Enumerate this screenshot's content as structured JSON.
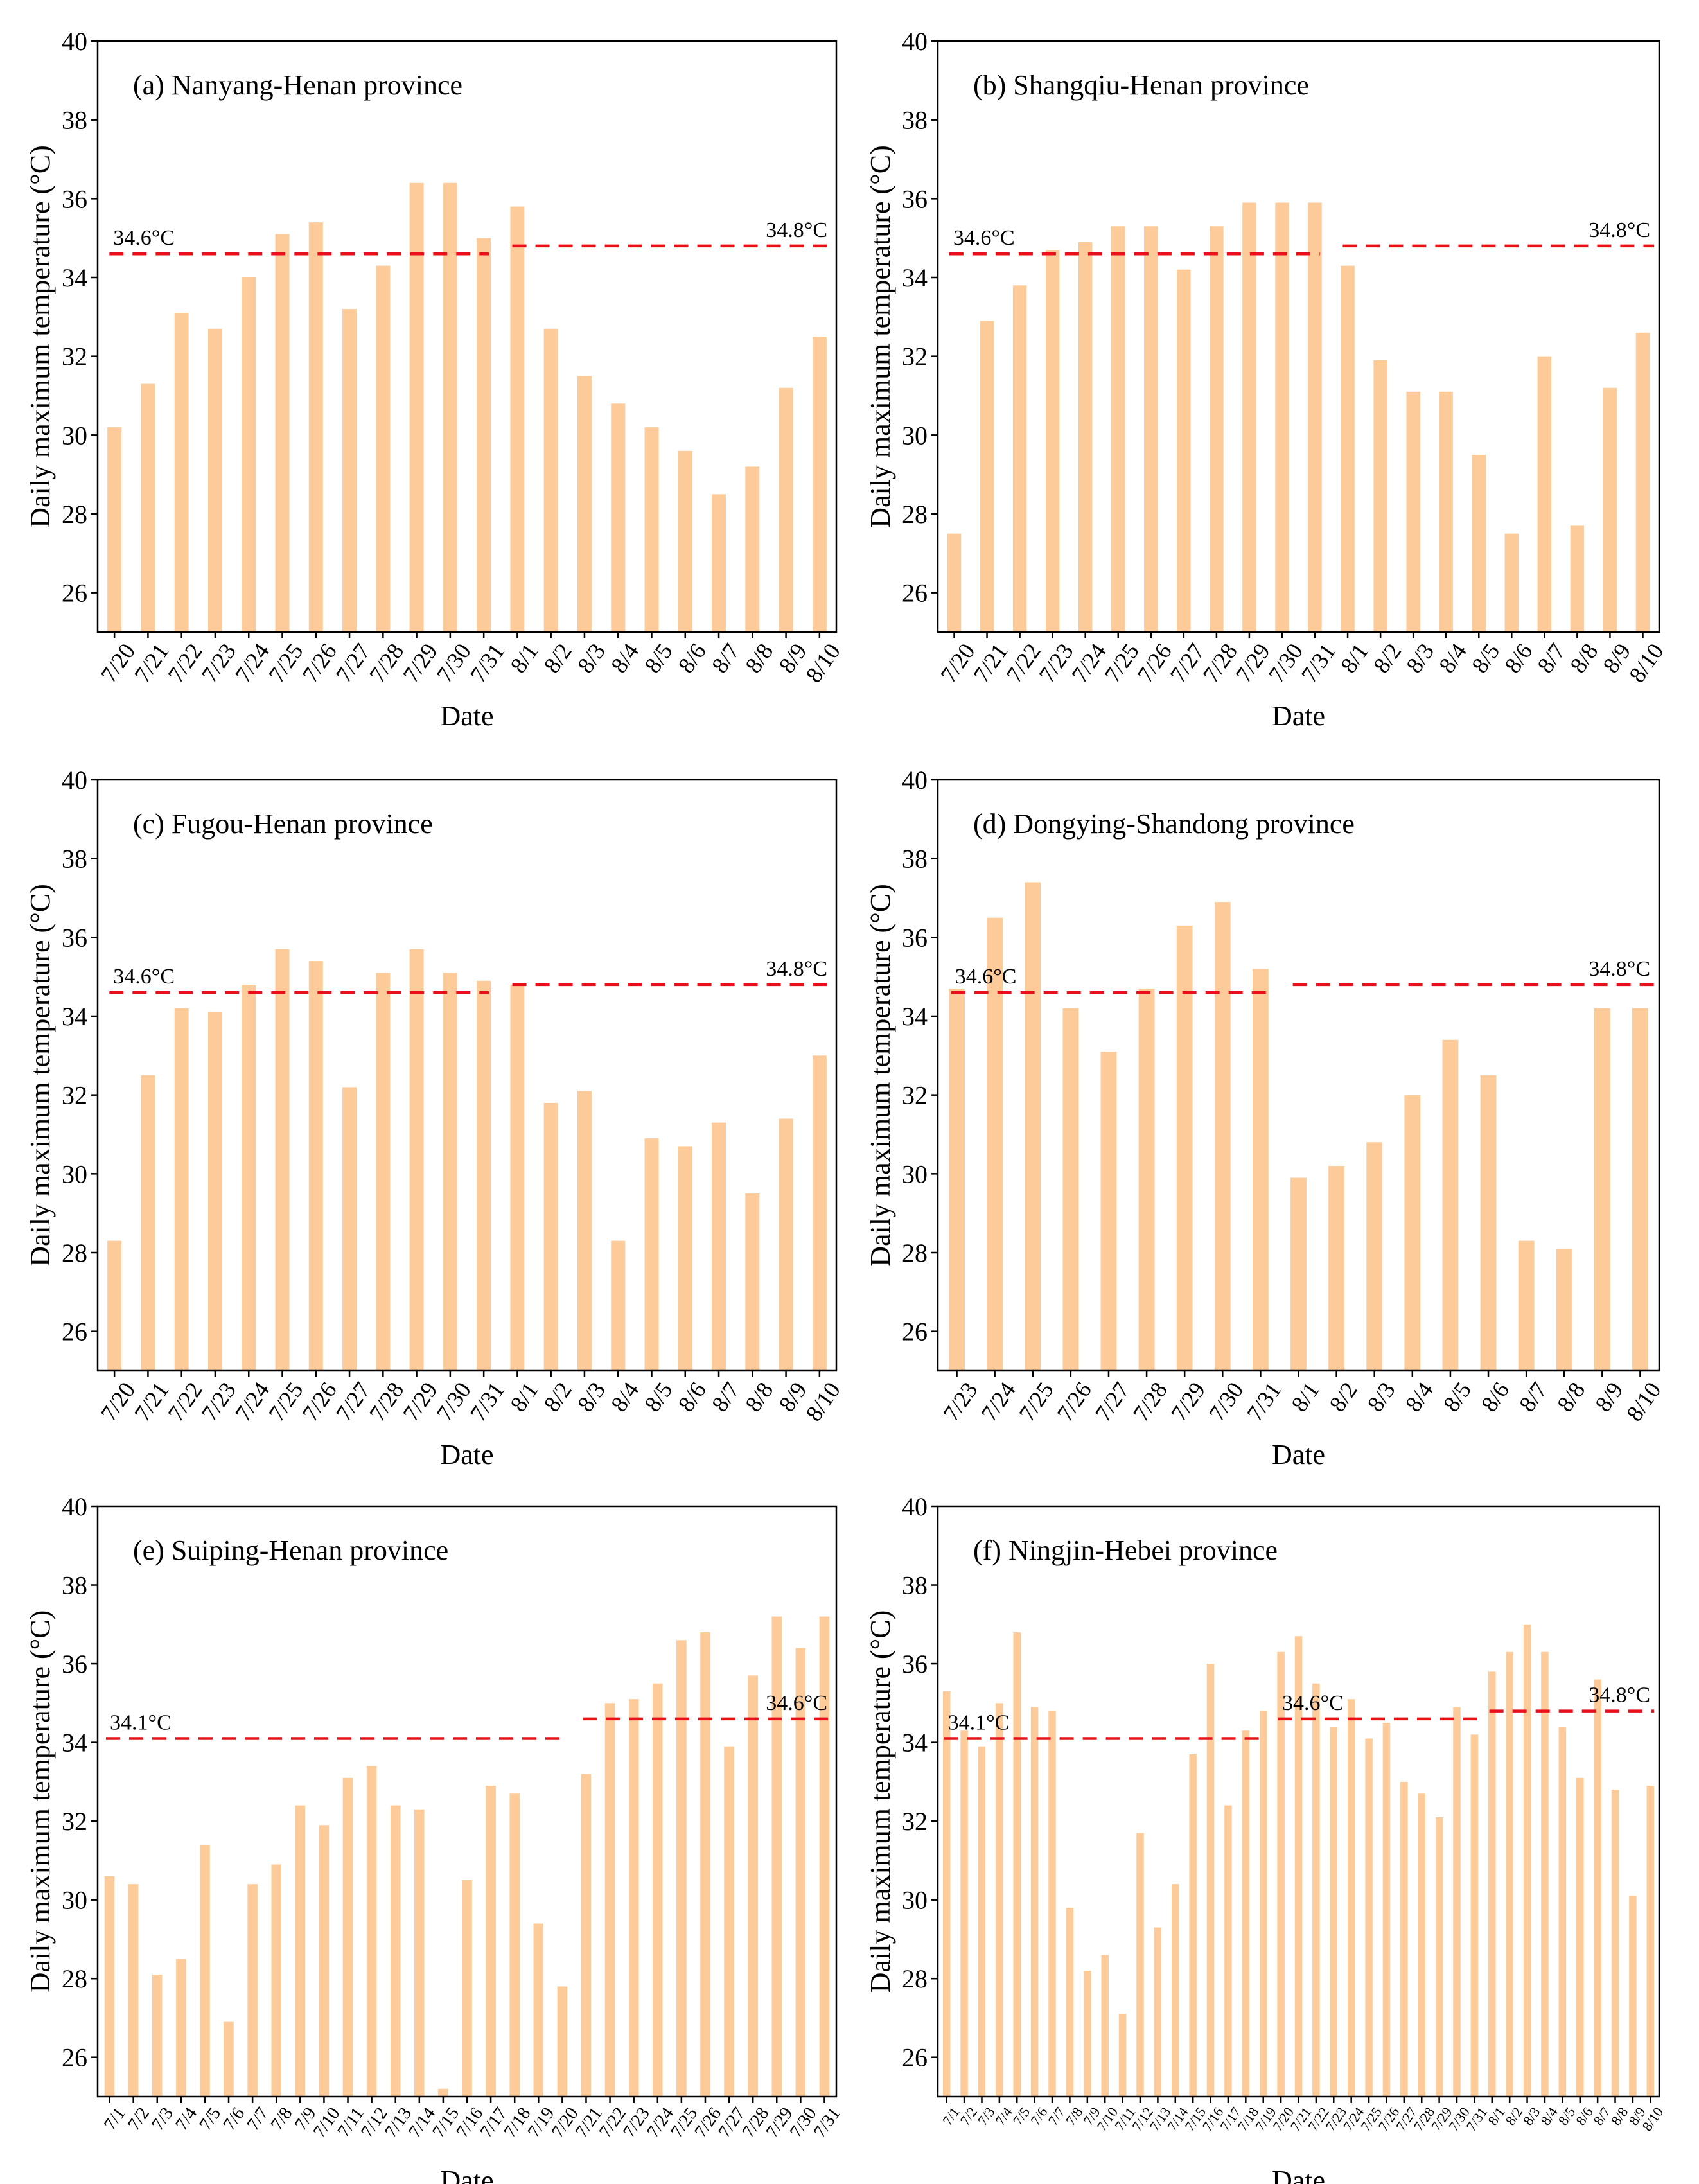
{
  "colors": {
    "bar": "#FDCB99",
    "reference_line": "#E8101A"
  },
  "chart_data": [
    {
      "type": "bar",
      "title": "(a) Nanyang-Henan province",
      "xlabel": "Date",
      "ylabel": "Daily maximum temperature (°C)",
      "ylim": [
        25,
        40
      ],
      "yticks": [
        26,
        28,
        30,
        32,
        34,
        36,
        38,
        40
      ],
      "categories": [
        "7/20",
        "7/21",
        "7/22",
        "7/23",
        "7/24",
        "7/25",
        "7/26",
        "7/27",
        "7/28",
        "7/29",
        "7/30",
        "7/31",
        "8/1",
        "8/2",
        "8/3",
        "8/4",
        "8/5",
        "8/6",
        "8/7",
        "8/8",
        "8/9",
        "8/10"
      ],
      "values": [
        30.2,
        31.3,
        33.1,
        32.7,
        34.0,
        35.1,
        35.4,
        33.2,
        34.3,
        36.4,
        36.4,
        35.0,
        35.8,
        32.7,
        31.5,
        30.8,
        30.2,
        29.6,
        28.5,
        29.2,
        31.2,
        32.5
      ],
      "reference_lines": [
        {
          "label": "34.6°C",
          "value": 34.6,
          "start": 0,
          "end": 11
        },
        {
          "label": "34.8°C",
          "value": 34.8,
          "start": 12,
          "end": 21
        }
      ]
    },
    {
      "type": "bar",
      "title": "(b) Shangqiu-Henan province",
      "xlabel": "Date",
      "ylabel": "Daily maximum temperature (°C)",
      "ylim": [
        25,
        40
      ],
      "yticks": [
        26,
        28,
        30,
        32,
        34,
        36,
        38,
        40
      ],
      "categories": [
        "7/20",
        "7/21",
        "7/22",
        "7/23",
        "7/24",
        "7/25",
        "7/26",
        "7/27",
        "7/28",
        "7/29",
        "7/30",
        "7/31",
        "8/1",
        "8/2",
        "8/3",
        "8/4",
        "8/5",
        "8/6",
        "8/7",
        "8/8",
        "8/9",
        "8/10"
      ],
      "values": [
        27.5,
        32.9,
        33.8,
        34.7,
        34.9,
        35.3,
        35.3,
        34.2,
        35.3,
        35.9,
        35.9,
        35.9,
        34.3,
        31.9,
        31.1,
        31.1,
        29.5,
        27.5,
        32.0,
        27.7,
        31.2,
        32.6
      ],
      "reference_lines": [
        {
          "label": "34.6°C",
          "value": 34.6,
          "start": 0,
          "end": 11
        },
        {
          "label": "34.8°C",
          "value": 34.8,
          "start": 12,
          "end": 21
        }
      ]
    },
    {
      "type": "bar",
      "title": "(c) Fugou-Henan province",
      "xlabel": "Date",
      "ylabel": "Daily maximum temperature (°C)",
      "ylim": [
        25,
        40
      ],
      "yticks": [
        26,
        28,
        30,
        32,
        34,
        36,
        38,
        40
      ],
      "categories": [
        "7/20",
        "7/21",
        "7/22",
        "7/23",
        "7/24",
        "7/25",
        "7/26",
        "7/27",
        "7/28",
        "7/29",
        "7/30",
        "7/31",
        "8/1",
        "8/2",
        "8/3",
        "8/4",
        "8/5",
        "8/6",
        "8/7",
        "8/8",
        "8/9",
        "8/10"
      ],
      "values": [
        28.3,
        32.5,
        34.2,
        34.1,
        34.8,
        35.7,
        35.4,
        32.2,
        35.1,
        35.7,
        35.1,
        34.9,
        34.8,
        31.8,
        32.1,
        28.3,
        30.9,
        30.7,
        31.3,
        29.5,
        31.4,
        33.0
      ],
      "reference_lines": [
        {
          "label": "34.6°C",
          "value": 34.6,
          "start": 0,
          "end": 11
        },
        {
          "label": "34.8°C",
          "value": 34.8,
          "start": 12,
          "end": 21
        }
      ]
    },
    {
      "type": "bar",
      "title": "(d) Dongying-Shandong province",
      "xlabel": "Date",
      "ylabel": "Daily maximum temperature (°C)",
      "ylim": [
        25,
        40
      ],
      "yticks": [
        26,
        28,
        30,
        32,
        34,
        36,
        38,
        40
      ],
      "categories": [
        "7/23",
        "7/24",
        "7/25",
        "7/26",
        "7/27",
        "7/28",
        "7/29",
        "7/30",
        "7/31",
        "8/1",
        "8/2",
        "8/3",
        "8/4",
        "8/5",
        "8/6",
        "8/7",
        "8/8",
        "8/9",
        "8/10"
      ],
      "values": [
        34.7,
        36.5,
        37.4,
        34.2,
        33.1,
        34.7,
        36.3,
        36.9,
        35.2,
        29.9,
        30.2,
        30.8,
        32.0,
        33.4,
        32.5,
        28.3,
        28.1,
        34.2,
        34.2
      ],
      "reference_lines": [
        {
          "label": "34.6°C",
          "value": 34.6,
          "start": 0,
          "end": 8
        },
        {
          "label": "34.8°C",
          "value": 34.8,
          "start": 9,
          "end": 18
        }
      ]
    },
    {
      "type": "bar",
      "title": "(e) Suiping-Henan province",
      "xlabel": "Date",
      "ylabel": "Daily maximum temperature (°C)",
      "ylim": [
        25,
        40
      ],
      "yticks": [
        26,
        28,
        30,
        32,
        34,
        36,
        38,
        40
      ],
      "categories": [
        "7/1",
        "7/2",
        "7/3",
        "7/4",
        "7/5",
        "7/6",
        "7/7",
        "7/8",
        "7/9",
        "7/10",
        "7/11",
        "7/12",
        "7/13",
        "7/14",
        "7/15",
        "7/16",
        "7/17",
        "7/18",
        "7/19",
        "7/20",
        "7/21",
        "7/22",
        "7/23",
        "7/24",
        "7/25",
        "7/26",
        "7/27",
        "7/28",
        "7/29",
        "7/30",
        "7/31"
      ],
      "values": [
        30.6,
        30.4,
        28.1,
        28.5,
        31.4,
        26.9,
        30.4,
        30.9,
        32.4,
        31.9,
        33.1,
        33.4,
        32.4,
        32.3,
        25.2,
        30.5,
        32.9,
        32.7,
        29.4,
        27.8,
        33.2,
        35.0,
        35.1,
        35.5,
        36.6,
        36.8,
        33.9,
        35.7,
        37.2,
        36.4,
        37.2
      ],
      "reference_lines": [
        {
          "label": "34.1°C",
          "value": 34.1,
          "start": 0,
          "end": 19
        },
        {
          "label": "34.6°C",
          "value": 34.6,
          "start": 20,
          "end": 30
        }
      ]
    },
    {
      "type": "bar",
      "title": "(f) Ningjin-Hebei province",
      "xlabel": "Date",
      "ylabel": "Daily maximum temperature (°C)",
      "ylim": [
        25,
        40
      ],
      "yticks": [
        26,
        28,
        30,
        32,
        34,
        36,
        38,
        40
      ],
      "categories": [
        "7/1",
        "7/2",
        "7/3",
        "7/4",
        "7/5",
        "7/6",
        "7/7",
        "7/8",
        "7/9",
        "7/10",
        "7/11",
        "7/12",
        "7/13",
        "7/14",
        "7/15",
        "7/16",
        "7/17",
        "7/18",
        "7/19",
        "7/20",
        "7/21",
        "7/22",
        "7/23",
        "7/24",
        "7/25",
        "7/26",
        "7/27",
        "7/28",
        "7/29",
        "7/30",
        "7/31",
        "8/1",
        "8/2",
        "8/3",
        "8/4",
        "8/5",
        "8/6",
        "8/7",
        "8/8",
        "8/9",
        "8/10"
      ],
      "values": [
        35.3,
        34.3,
        33.9,
        35.0,
        36.8,
        34.9,
        34.8,
        29.8,
        28.2,
        28.6,
        27.1,
        31.7,
        29.3,
        30.4,
        33.7,
        36.0,
        32.4,
        34.3,
        34.8,
        36.3,
        36.7,
        35.5,
        34.4,
        35.1,
        34.1,
        34.5,
        33.0,
        32.7,
        32.1,
        34.9,
        34.2,
        35.8,
        36.3,
        37.0,
        36.3,
        34.4,
        33.1,
        35.6,
        32.8,
        30.1,
        32.9
      ],
      "reference_lines": [
        {
          "label": "34.1°C",
          "value": 34.1,
          "start": 0,
          "end": 18
        },
        {
          "label": "34.6°C",
          "value": 34.6,
          "start": 19,
          "end": 30
        },
        {
          "label": "34.8°C",
          "value": 34.8,
          "start": 31,
          "end": 40
        }
      ]
    }
  ]
}
